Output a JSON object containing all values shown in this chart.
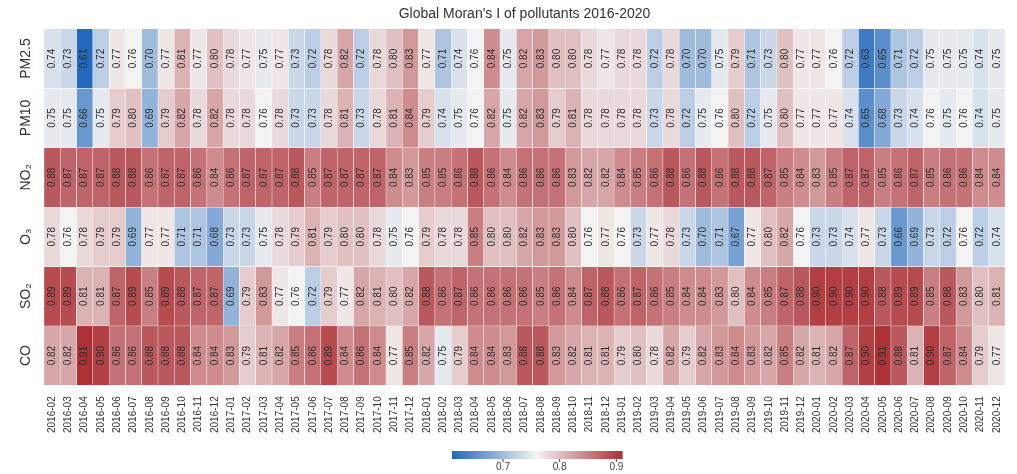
{
  "chart_data": {
    "type": "heatmap",
    "title": "Global Moran's I of pollutants 2016-2020",
    "categories": [
      "2016-02",
      "2016-03",
      "2016-04",
      "2016-05",
      "2016-06",
      "2016-07",
      "2016-08",
      "2016-09",
      "2016-10",
      "2016-11",
      "2016-12",
      "2017-01",
      "2017-02",
      "2017-03",
      "2017-04",
      "2017-05",
      "2017-06",
      "2017-07",
      "2017-08",
      "2017-09",
      "2017-10",
      "2017-11",
      "2017-12",
      "2018-01",
      "2018-02",
      "2018-03",
      "2018-04",
      "2018-05",
      "2018-06",
      "2018-07",
      "2018-08",
      "2018-09",
      "2018-10",
      "2018-11",
      "2018-12",
      "2019-01",
      "2019-02",
      "2019-03",
      "2019-04",
      "2019-05",
      "2019-06",
      "2019-07",
      "2019-08",
      "2019-09",
      "2019-10",
      "2019-11",
      "2019-12",
      "2020-01",
      "2020-02",
      "2020-03",
      "2020-04",
      "2020-05",
      "2020-06",
      "2020-07",
      "2020-08",
      "2020-09",
      "2020-10",
      "2020-11",
      "2020-12"
    ],
    "y_categories": [
      "PM2.5",
      "PM10",
      "NO₂",
      "O₃",
      "SO₂",
      "CO"
    ],
    "cells": [
      [
        0.74,
        0.73,
        0.61,
        0.72,
        0.77,
        0.76,
        0.7,
        0.77,
        0.81,
        0.77,
        0.8,
        0.78,
        0.77,
        0.75,
        0.77,
        0.73,
        0.72,
        0.78,
        0.82,
        0.72,
        0.78,
        0.8,
        0.83,
        0.77,
        0.71,
        0.74,
        0.76,
        0.84,
        0.75,
        0.82,
        0.83,
        0.8,
        0.8,
        0.78,
        0.77,
        0.78,
        0.78,
        0.72,
        0.78,
        0.7,
        0.7,
        0.75,
        0.79,
        0.71,
        0.73,
        0.8,
        0.77,
        0.77,
        0.76,
        0.72,
        0.63,
        0.65,
        0.71,
        0.72,
        0.75,
        0.75,
        0.75,
        0.74,
        0.75
      ],
      [
        0.75,
        0.75,
        0.66,
        0.75,
        0.79,
        0.8,
        0.69,
        0.79,
        0.82,
        0.78,
        0.82,
        0.78,
        0.78,
        0.76,
        0.78,
        0.73,
        0.73,
        0.78,
        0.81,
        0.73,
        0.78,
        0.81,
        0.84,
        0.79,
        0.74,
        0.75,
        0.76,
        0.82,
        0.75,
        0.82,
        0.83,
        0.79,
        0.81,
        0.78,
        0.78,
        0.78,
        0.78,
        0.73,
        0.78,
        0.72,
        0.75,
        0.76,
        0.8,
        0.72,
        0.75,
        0.8,
        0.77,
        0.77,
        0.77,
        0.74,
        0.65,
        0.68,
        0.73,
        0.74,
        0.76,
        0.75,
        0.76,
        0.74,
        0.75
      ],
      [
        0.88,
        0.87,
        0.87,
        0.87,
        0.88,
        0.88,
        0.86,
        0.87,
        0.87,
        0.86,
        0.84,
        0.86,
        0.87,
        0.87,
        0.87,
        0.88,
        0.85,
        0.87,
        0.87,
        0.87,
        0.87,
        0.84,
        0.83,
        0.85,
        0.85,
        0.86,
        0.88,
        0.86,
        0.84,
        0.86,
        0.86,
        0.86,
        0.83,
        0.82,
        0.82,
        0.84,
        0.85,
        0.86,
        0.88,
        0.86,
        0.88,
        0.86,
        0.88,
        0.88,
        0.87,
        0.85,
        0.84,
        0.83,
        0.85,
        0.87,
        0.87,
        0.85,
        0.86,
        0.87,
        0.85,
        0.86,
        0.86,
        0.84,
        0.84
      ],
      [
        0.78,
        0.76,
        0.78,
        0.79,
        0.79,
        0.69,
        0.77,
        0.77,
        0.71,
        0.71,
        0.68,
        0.73,
        0.73,
        0.75,
        0.78,
        0.79,
        0.81,
        0.79,
        0.8,
        0.8,
        0.78,
        0.75,
        0.76,
        0.79,
        0.78,
        0.78,
        0.85,
        0.8,
        0.8,
        0.82,
        0.83,
        0.83,
        0.8,
        0.76,
        0.77,
        0.76,
        0.73,
        0.77,
        0.78,
        0.73,
        0.7,
        0.71,
        0.67,
        0.77,
        0.8,
        0.82,
        0.76,
        0.73,
        0.73,
        0.74,
        0.77,
        0.73,
        0.66,
        0.69,
        0.73,
        0.72,
        0.76,
        0.72,
        0.74
      ],
      [
        0.89,
        0.89,
        0.81,
        0.81,
        0.87,
        0.89,
        0.85,
        0.89,
        0.88,
        0.87,
        0.87,
        0.69,
        0.79,
        0.83,
        0.77,
        0.76,
        0.72,
        0.79,
        0.77,
        0.82,
        0.81,
        0.8,
        0.82,
        0.88,
        0.86,
        0.87,
        0.86,
        0.86,
        0.86,
        0.86,
        0.85,
        0.86,
        0.84,
        0.87,
        0.88,
        0.86,
        0.87,
        0.86,
        0.85,
        0.84,
        0.84,
        0.83,
        0.8,
        0.84,
        0.85,
        0.87,
        0.88,
        0.9,
        0.9,
        0.9,
        0.9,
        0.88,
        0.89,
        0.89,
        0.85,
        0.88,
        0.83,
        0.8,
        0.81
      ],
      [
        0.82,
        0.82,
        0.91,
        0.9,
        0.86,
        0.86,
        0.88,
        0.88,
        0.88,
        0.84,
        0.84,
        0.83,
        0.79,
        0.81,
        0.82,
        0.85,
        0.86,
        0.89,
        0.84,
        0.86,
        0.84,
        0.77,
        0.85,
        0.82,
        0.75,
        0.79,
        0.84,
        0.84,
        0.83,
        0.88,
        0.88,
        0.83,
        0.82,
        0.81,
        0.81,
        0.79,
        0.8,
        0.78,
        0.82,
        0.79,
        0.82,
        0.83,
        0.84,
        0.83,
        0.82,
        0.85,
        0.82,
        0.81,
        0.82,
        0.87,
        0.9,
        0.91,
        0.88,
        0.81,
        0.9,
        0.87,
        0.84,
        0.79,
        0.77
      ]
    ],
    "cell_labels": [
      [
        "0.74",
        "0.73",
        "0.61",
        "0.72",
        "0.77",
        "0.76",
        "0.70",
        "0.77",
        "0.81",
        "0.77",
        "0.80",
        "0.78",
        "0.77",
        "0.75",
        "0.77",
        "0.73",
        "0.72",
        "0.78",
        "0.82",
        "0.72",
        "0.78",
        "0.80",
        "0.83",
        "0.77",
        "0.71",
        "0.74",
        "0.76",
        "0.84",
        "0.75",
        "0.82",
        "0.83",
        "0.80",
        "0.80",
        "0.78",
        "0.77",
        "0.78",
        "0.78",
        "0.72",
        "0.78",
        "0.70",
        "0.70",
        "0.75",
        "0.79",
        "0.71",
        "0.73",
        "0.80",
        "0.77",
        "0.77",
        "0.76",
        "0.72",
        "0.63",
        "0.65",
        "0.71",
        "0.72",
        "0.75",
        "0.75",
        "0.75",
        "0.74",
        "0.75"
      ],
      [
        "0.75",
        "0.75",
        "0.66",
        "0.75",
        "0.79",
        "0.80",
        "0.69",
        "0.79",
        "0.82",
        "0.78",
        "0.82",
        "0.78",
        "0.78",
        "0.76",
        "0.78",
        "0.73",
        "0.73",
        "0.78",
        "0.81",
        "0.73",
        "0.78",
        "0.81",
        "0.84",
        "0.79",
        "0.74",
        "0.75",
        "0.76",
        "0.82",
        "0.75",
        "0.82",
        "0.83",
        "0.79",
        "0.81",
        "0.78",
        "0.78",
        "0.78",
        "0.78",
        "0.73",
        "0.78",
        "0.72",
        "0.75",
        "0.76",
        "0.80",
        "0.72",
        "0.75",
        "0.80",
        "0.77",
        "0.77",
        "0.77",
        "0.74",
        "0.65",
        "0.68",
        "0.73",
        "0.74",
        "0.76",
        "0.75",
        "0.76",
        "0.74",
        "0.75"
      ],
      [
        "0.88",
        "0.87",
        "0.87",
        "0.87",
        "0.88",
        "0.88",
        "0.86",
        "0.87",
        "0.87",
        "0.86",
        "0.84",
        "0.86",
        "0.87",
        "0.87",
        "0.87",
        "0.88",
        "0.85",
        "0.87",
        "0.87",
        "0.87",
        "0.87",
        "0.84",
        "0.83",
        "0.85",
        "0.85",
        "0.86",
        "0.88",
        "0.86",
        "0.84",
        "0.86",
        "0.86",
        "0.86",
        "0.83",
        "0.82",
        "0.82",
        "0.84",
        "0.85",
        "0.86",
        "0.88",
        "0.86",
        "0.88",
        "0.86",
        "0.88",
        "0.88",
        "0.87",
        "0.85",
        "0.84",
        "0.83",
        "0.85",
        "0.87",
        "0.87",
        "0.85",
        "0.86",
        "0.87",
        "0.85",
        "0.86",
        "0.86",
        "0.84",
        "0.84"
      ],
      [
        "0.78",
        "0.76",
        "0.78",
        "0.79",
        "0.79",
        "0.69",
        "0.77",
        "0.77",
        "0.71",
        "0.71",
        "0.68",
        "0.73",
        "0.73",
        "0.75",
        "0.78",
        "0.79",
        "0.81",
        "0.79",
        "0.80",
        "0.80",
        "0.78",
        "0.75",
        "0.76",
        "0.79",
        "0.78",
        "0.78",
        "0.85",
        "0.80",
        "0.80",
        "0.82",
        "0.83",
        "0.83",
        "0.80",
        "0.76",
        "0.77",
        "0.76",
        "0.73",
        "0.77",
        "0.78",
        "0.73",
        "0.70",
        "0.71",
        "0.67",
        "0.77",
        "0.80",
        "0.82",
        "0.76",
        "0.73",
        "0.73",
        "0.74",
        "0.77",
        "0.73",
        "0.66",
        "0.69",
        "0.73",
        "0.72",
        "0.76",
        "0.72",
        "0.74"
      ],
      [
        "0.89",
        "0.89",
        "0.81",
        "0.81",
        "0.87",
        "0.89",
        "0.85",
        "0.89",
        "0.88",
        "0.87",
        "0.87",
        "0.69",
        "0.79",
        "0.83",
        "0.77",
        "0.76",
        "0.72",
        "0.79",
        "0.77",
        "0.82",
        "0.81",
        "0.80",
        "0.82",
        "0.88",
        "0.86",
        "0.87",
        "0.86",
        "0.86",
        "0.86",
        "0.86",
        "0.85",
        "0.86",
        "0.84",
        "0.87",
        "0.88",
        "0.86",
        "0.87",
        "0.86",
        "0.85",
        "0.84",
        "0.84",
        "0.83",
        "0.80",
        "0.84",
        "0.85",
        "0.87",
        "0.88",
        "0.90",
        "0.90",
        "0.90",
        "0.90",
        "0.88",
        "0.89",
        "0.89",
        "0.85",
        "0.88",
        "0.83",
        "0.80",
        "0.81"
      ],
      [
        "0.82",
        "0.82",
        "0.91",
        "0.90",
        "0.86",
        "0.86",
        "0.88",
        "0.88",
        "0.88",
        "0.84",
        "0.84",
        "0.83",
        "0.79",
        "0.81",
        "0.82",
        "0.85",
        "0.86",
        "0.89",
        "0.84",
        "0.86",
        "0.84",
        "0.77",
        "0.85",
        "0.82",
        "0.75",
        "0.79",
        "0.84",
        "0.84",
        "0.83",
        "0.88",
        "0.88",
        "0.83",
        "0.82",
        "0.81",
        "0.81",
        "0.79",
        "0.80",
        "0.78",
        "0.82",
        "0.79",
        "0.82",
        "0.83",
        "0.84",
        "0.83",
        "0.82",
        "0.85",
        "0.82",
        "0.81",
        "0.82",
        "0.87",
        "0.90",
        "0.91",
        "0.88",
        "0.81",
        "0.90",
        "0.87",
        "0.84",
        "0.79",
        "0.77"
      ]
    ],
    "clim": [
      0.61,
      0.91
    ],
    "cticks": [
      0.7,
      0.8,
      0.9
    ],
    "data_labels": true
  }
}
